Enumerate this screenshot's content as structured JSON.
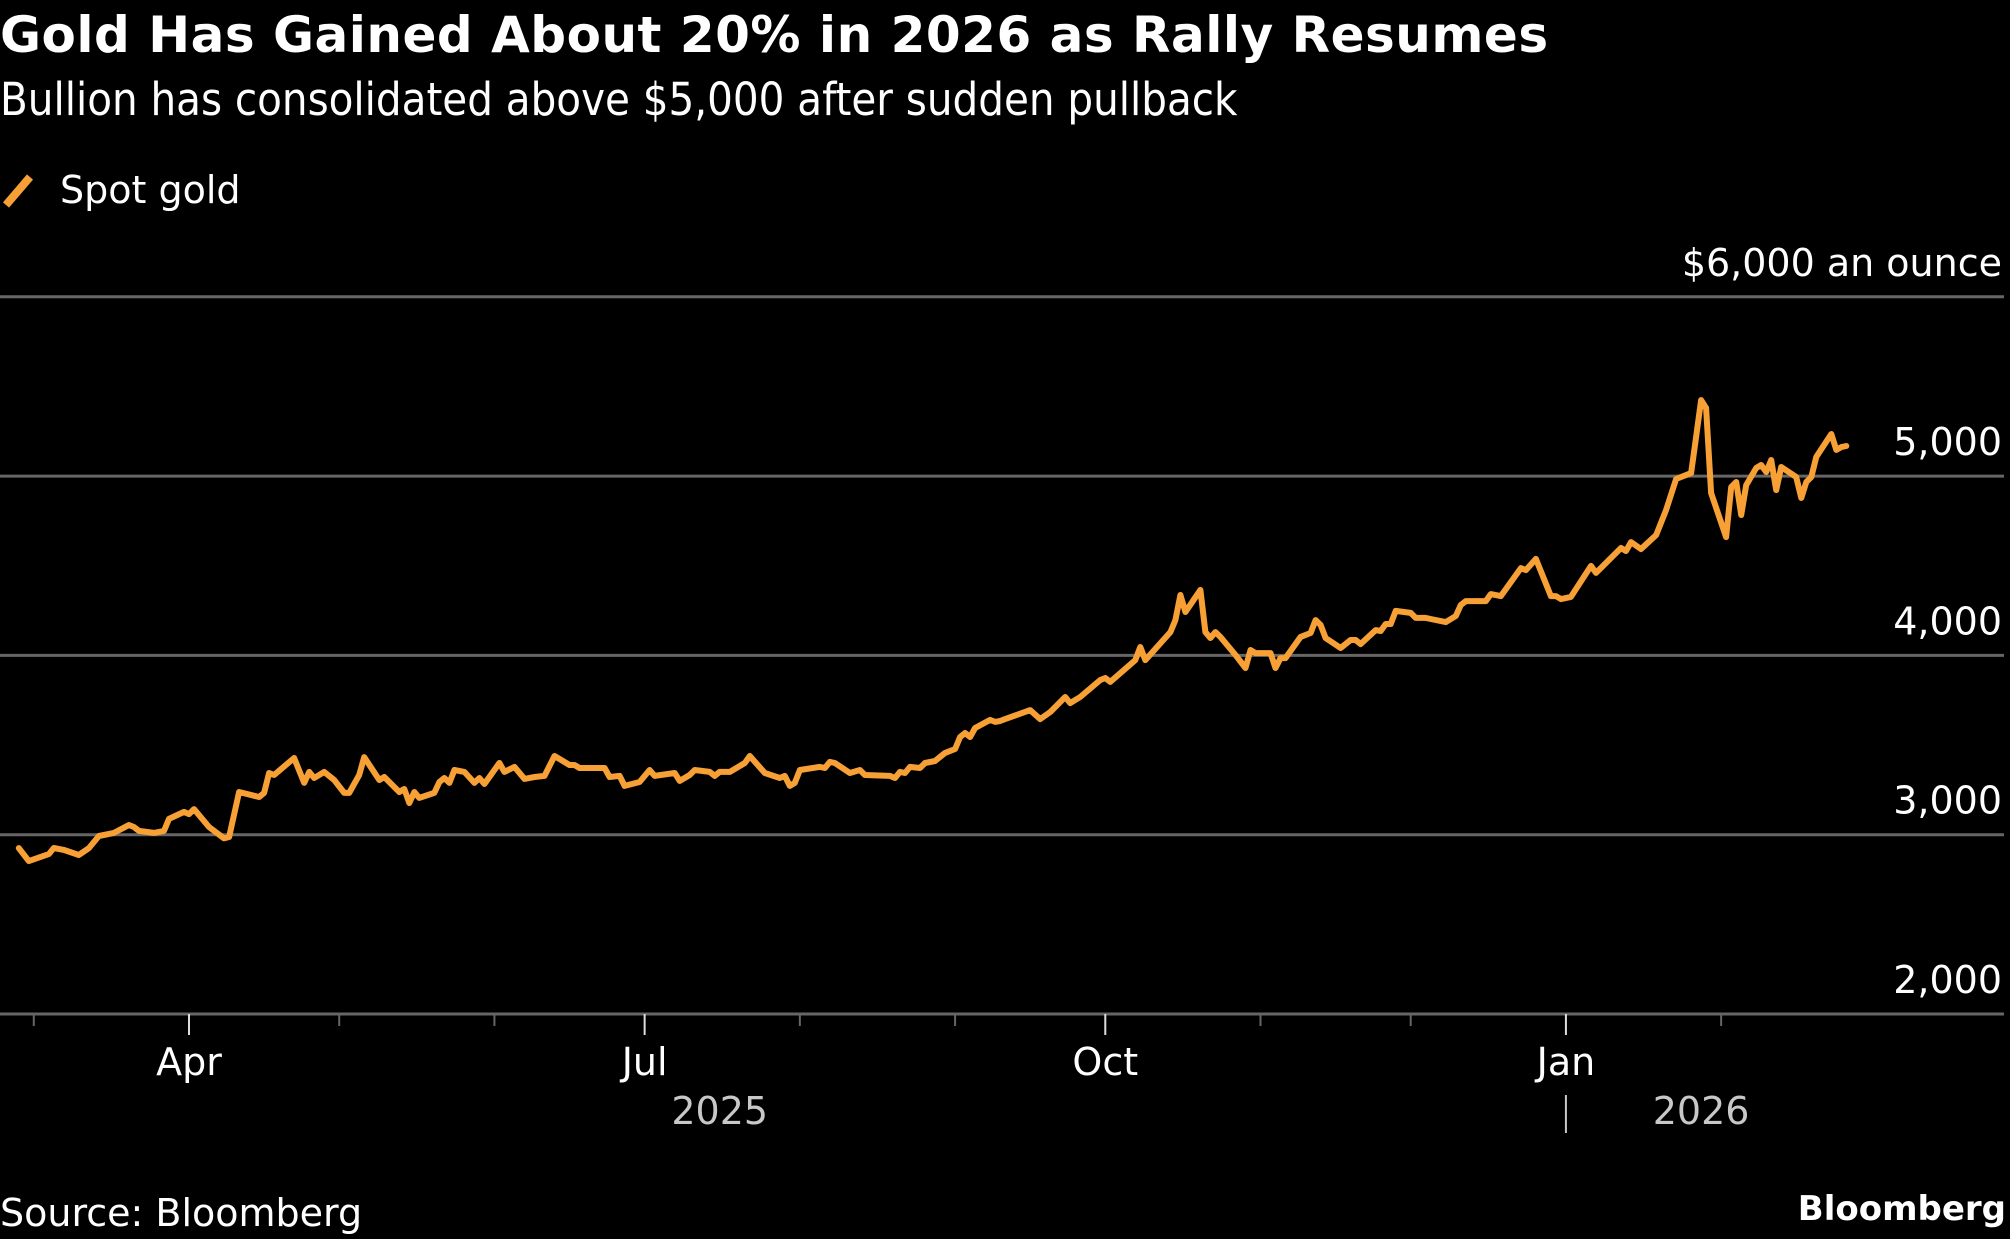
{
  "header": {
    "title": "Gold Has Gained About 20% in 2026 as Rally Resumes",
    "subtitle": "Bullion has consolidated above $5,000 after sudden pullback"
  },
  "footer": {
    "source": "Source: Bloomberg",
    "brand": "Bloomberg"
  },
  "colors": {
    "background": "#000000",
    "series": "#f7a035",
    "grid": "#666666",
    "text": "#ffffff",
    "year_label": "#c8c8c8"
  },
  "chart_data": {
    "type": "line",
    "title": "Gold Has Gained About 20% in 2026 as Rally Resumes",
    "subtitle": "Bullion has consolidated above $5,000 after sudden pullback",
    "xlabel": "",
    "ylabel": "",
    "x_unit": "days since 2025-04-01",
    "xlim_dates": [
      "2025-02-26",
      "2026-02-26"
    ],
    "ylim": [
      2000,
      6000
    ],
    "grid": true,
    "legend_position": "top-left",
    "y_ticks": [
      {
        "value": 6000,
        "label": "$6,000 an ounce"
      },
      {
        "value": 5000,
        "label": "5,000"
      },
      {
        "value": 4000,
        "label": "4,000"
      },
      {
        "value": 3000,
        "label": "3,000"
      },
      {
        "value": 2000,
        "label": "2,000"
      }
    ],
    "x_ticks": [
      {
        "date": "2025-04-01",
        "offset": 0,
        "label": "Apr"
      },
      {
        "date": "2025-07-01",
        "offset": 91,
        "label": "Jul"
      },
      {
        "date": "2025-10-01",
        "offset": 183,
        "label": "Oct"
      },
      {
        "date": "2026-01-01",
        "offset": 275,
        "label": "Jan"
      }
    ],
    "x_minor_ticks": [
      -31,
      30,
      61,
      122,
      153,
      214,
      244,
      306
    ],
    "year_labels": [
      {
        "label": "2025",
        "center_offset": 106
      },
      {
        "label": "2026",
        "center_offset": 302,
        "divider_offset": 275
      }
    ],
    "series": [
      {
        "name": "Spot gold",
        "color": "#f7a035",
        "points": [
          [
            -34,
            2925
          ],
          [
            -32,
            2853
          ],
          [
            -28,
            2892
          ],
          [
            -27,
            2926
          ],
          [
            -25,
            2915
          ],
          [
            -22,
            2887
          ],
          [
            -20,
            2925
          ],
          [
            -18,
            2993
          ],
          [
            -15,
            3010
          ],
          [
            -12,
            3054
          ],
          [
            -11,
            3043
          ],
          [
            -10,
            3021
          ],
          [
            -7,
            3010
          ],
          [
            -5,
            3021
          ],
          [
            -4,
            3088
          ],
          [
            -1,
            3127
          ],
          [
            0,
            3115
          ],
          [
            1,
            3143
          ],
          [
            4,
            3043
          ],
          [
            7,
            2980
          ],
          [
            8,
            2987
          ],
          [
            10,
            3238
          ],
          [
            14,
            3210
          ],
          [
            15,
            3233
          ],
          [
            16,
            3344
          ],
          [
            17,
            3333
          ],
          [
            21,
            3428
          ],
          [
            23,
            3289
          ],
          [
            24,
            3350
          ],
          [
            25,
            3316
          ],
          [
            27,
            3350
          ],
          [
            29,
            3305
          ],
          [
            31,
            3233
          ],
          [
            32,
            3233
          ],
          [
            34,
            3333
          ],
          [
            35,
            3433
          ],
          [
            38,
            3305
          ],
          [
            39,
            3322
          ],
          [
            42,
            3238
          ],
          [
            43,
            3255
          ],
          [
            44,
            3177
          ],
          [
            45,
            3238
          ],
          [
            46,
            3205
          ],
          [
            49,
            3233
          ],
          [
            50,
            3294
          ],
          [
            51,
            3316
          ],
          [
            52,
            3289
          ],
          [
            53,
            3361
          ],
          [
            55,
            3350
          ],
          [
            57,
            3289
          ],
          [
            58,
            3316
          ],
          [
            59,
            3283
          ],
          [
            62,
            3400
          ],
          [
            63,
            3350
          ],
          [
            65,
            3378
          ],
          [
            67,
            3311
          ],
          [
            69,
            3322
          ],
          [
            71,
            3328
          ],
          [
            73,
            3439
          ],
          [
            76,
            3389
          ],
          [
            77,
            3389
          ],
          [
            78,
            3372
          ],
          [
            83,
            3372
          ],
          [
            84,
            3322
          ],
          [
            86,
            3328
          ],
          [
            87,
            3272
          ],
          [
            90,
            3294
          ],
          [
            92,
            3361
          ],
          [
            93,
            3328
          ],
          [
            97,
            3344
          ],
          [
            98,
            3300
          ],
          [
            100,
            3333
          ],
          [
            101,
            3361
          ],
          [
            104,
            3350
          ],
          [
            105,
            3328
          ],
          [
            106,
            3350
          ],
          [
            108,
            3350
          ],
          [
            111,
            3400
          ],
          [
            112,
            3439
          ],
          [
            115,
            3344
          ],
          [
            118,
            3316
          ],
          [
            119,
            3328
          ],
          [
            120,
            3272
          ],
          [
            121,
            3289
          ],
          [
            122,
            3361
          ],
          [
            126,
            3378
          ],
          [
            127,
            3372
          ],
          [
            128,
            3406
          ],
          [
            129,
            3400
          ],
          [
            132,
            3344
          ],
          [
            134,
            3361
          ],
          [
            135,
            3333
          ],
          [
            140,
            3328
          ],
          [
            141,
            3316
          ],
          [
            142,
            3350
          ],
          [
            143,
            3344
          ],
          [
            144,
            3378
          ],
          [
            146,
            3372
          ],
          [
            147,
            3400
          ],
          [
            149,
            3411
          ],
          [
            151,
            3456
          ],
          [
            153,
            3478
          ],
          [
            154,
            3545
          ],
          [
            155,
            3567
          ],
          [
            156,
            3545
          ],
          [
            157,
            3595
          ],
          [
            160,
            3640
          ],
          [
            161,
            3629
          ],
          [
            162,
            3634
          ],
          [
            163,
            3645
          ],
          [
            168,
            3695
          ],
          [
            170,
            3645
          ],
          [
            172,
            3684
          ],
          [
            175,
            3768
          ],
          [
            176,
            3734
          ],
          [
            178,
            3768
          ],
          [
            182,
            3863
          ],
          [
            183,
            3874
          ],
          [
            184,
            3852
          ],
          [
            189,
            3974
          ],
          [
            190,
            4047
          ],
          [
            191,
            3974
          ],
          [
            196,
            4130
          ],
          [
            197,
            4197
          ],
          [
            198,
            4337
          ],
          [
            199,
            4242
          ],
          [
            202,
            4365
          ],
          [
            203,
            4130
          ],
          [
            204,
            4097
          ],
          [
            205,
            4130
          ],
          [
            206,
            4103
          ],
          [
            209,
            4002
          ],
          [
            211,
            3930
          ],
          [
            212,
            4030
          ],
          [
            213,
            4013
          ],
          [
            216,
            4013
          ],
          [
            217,
            3930
          ],
          [
            218,
            3985
          ],
          [
            219,
            3985
          ],
          [
            222,
            4103
          ],
          [
            224,
            4125
          ],
          [
            225,
            4197
          ],
          [
            226,
            4170
          ],
          [
            227,
            4097
          ],
          [
            230,
            4041
          ],
          [
            232,
            4086
          ],
          [
            233,
            4086
          ],
          [
            234,
            4063
          ],
          [
            237,
            4141
          ],
          [
            238,
            4136
          ],
          [
            239,
            4175
          ],
          [
            240,
            4175
          ],
          [
            241,
            4248
          ],
          [
            244,
            4237
          ],
          [
            245,
            4209
          ],
          [
            247,
            4209
          ],
          [
            248,
            4203
          ],
          [
            251,
            4186
          ],
          [
            253,
            4220
          ],
          [
            254,
            4281
          ],
          [
            255,
            4303
          ],
          [
            259,
            4303
          ],
          [
            260,
            4342
          ],
          [
            262,
            4331
          ],
          [
            266,
            4487
          ],
          [
            267,
            4476
          ],
          [
            269,
            4538
          ],
          [
            272,
            4331
          ],
          [
            273,
            4331
          ],
          [
            274,
            4314
          ],
          [
            276,
            4326
          ],
          [
            280,
            4499
          ],
          [
            281,
            4460
          ],
          [
            286,
            4599
          ],
          [
            287,
            4582
          ],
          [
            288,
            4632
          ],
          [
            290,
            4593
          ],
          [
            293,
            4671
          ],
          [
            295,
            4811
          ],
          [
            297,
            4984
          ],
          [
            298,
            4995
          ],
          [
            300,
            5017
          ],
          [
            301,
            5218
          ],
          [
            302,
            5424
          ],
          [
            303,
            5380
          ],
          [
            304,
            4906
          ],
          [
            307,
            4660
          ],
          [
            308,
            4939
          ],
          [
            309,
            4967
          ],
          [
            310,
            4783
          ],
          [
            311,
            4950
          ],
          [
            313,
            5045
          ],
          [
            314,
            5062
          ],
          [
            315,
            5023
          ],
          [
            316,
            5090
          ],
          [
            317,
            4922
          ],
          [
            318,
            5051
          ],
          [
            321,
            4995
          ],
          [
            322,
            4878
          ],
          [
            323,
            4967
          ],
          [
            324,
            4995
          ],
          [
            325,
            5107
          ],
          [
            328,
            5235
          ],
          [
            329,
            5146
          ],
          [
            330,
            5162
          ],
          [
            331,
            5168
          ]
        ]
      }
    ]
  },
  "legend": {
    "items": [
      {
        "label": "Spot gold",
        "icon": "line-swatch-icon"
      }
    ]
  }
}
